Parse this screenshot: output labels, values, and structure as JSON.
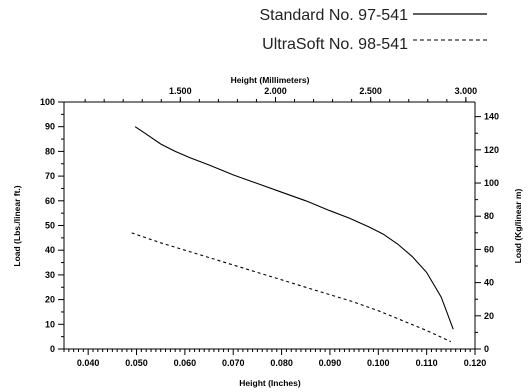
{
  "chart_data": {
    "type": "line",
    "legend_position": "top-right",
    "grid": false,
    "series": [
      {
        "name": "Standard No. 97-541",
        "style": "solid",
        "x": [
          0.0497,
          0.052,
          0.055,
          0.058,
          0.061,
          0.065,
          0.07,
          0.075,
          0.08,
          0.085,
          0.09,
          0.094,
          0.098,
          0.101,
          0.104,
          0.107,
          0.11,
          0.113,
          0.1155
        ],
        "y": [
          90,
          87,
          83,
          80,
          77.5,
          74.5,
          70.5,
          67,
          63.5,
          60,
          56,
          53,
          49.5,
          46.5,
          42.5,
          37.5,
          31,
          21,
          8
        ]
      },
      {
        "name": "UltraSoft No. 98-541",
        "style": "dashed",
        "x": [
          0.049,
          0.055,
          0.06,
          0.065,
          0.07,
          0.075,
          0.08,
          0.085,
          0.09,
          0.095,
          0.1,
          0.105,
          0.11,
          0.115
        ],
        "y": [
          47,
          43,
          40,
          37,
          34,
          31,
          28,
          25,
          22,
          19,
          15.5,
          11.5,
          7.5,
          3
        ]
      }
    ],
    "x_bottom": {
      "label": "Height (Inches)",
      "ticks": [
        "0.040",
        "0.050",
        "0.060",
        "0.070",
        "0.080",
        "0.090",
        "0.100",
        "0.110",
        "0.120"
      ],
      "range": [
        0.035,
        0.12
      ]
    },
    "x_top": {
      "label": "Height (Millimeters)",
      "ticks": [
        "1.500",
        "2.000",
        "2.500",
        "3.000"
      ]
    },
    "y_left": {
      "label": "Load (Lbs./linear ft.)",
      "ticks": [
        "0",
        "10",
        "20",
        "30",
        "40",
        "50",
        "60",
        "70",
        "80",
        "90",
        "100"
      ],
      "range": [
        0,
        100
      ]
    },
    "y_right": {
      "label": "Load (Kg/linear m)",
      "ticks": [
        "0",
        "20",
        "40",
        "60",
        "80",
        "100",
        "120",
        "140"
      ]
    }
  }
}
